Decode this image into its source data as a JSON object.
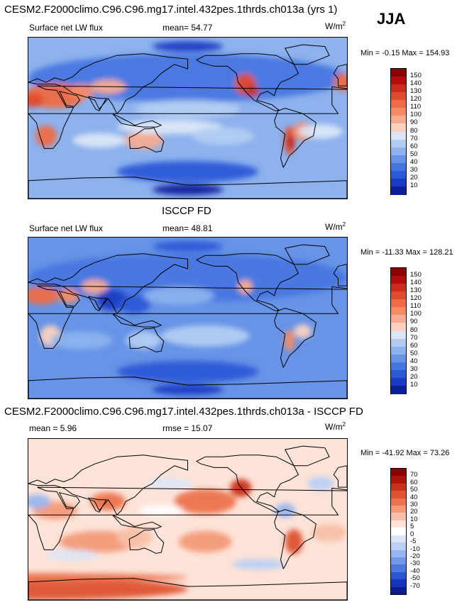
{
  "season": "JJA",
  "panels": [
    {
      "id": "model",
      "title": "CESM2.F2000climo.C96.C96.mg17.intel.432pes.1thrds.ch013a (yrs 1)",
      "variable": "Surface net LW flux",
      "stat": "mean=  54.77",
      "units_base": "W/m",
      "units_exp": "2",
      "minmax": "Min =  -0.15 Max = 154.93",
      "colorbar": {
        "levels": [
          "150",
          "140",
          "130",
          "120",
          "110",
          "100",
          "90",
          "80",
          "70",
          "60",
          "50",
          "40",
          "30",
          "20",
          "10"
        ],
        "colors": [
          "#8b0000",
          "#b30c0c",
          "#cc2a1c",
          "#e04a2e",
          "#ee6b45",
          "#f58c65",
          "#f7ac8f",
          "#fbd2c0",
          "#dbe7f7",
          "#b3cdf2",
          "#8db2ee",
          "#6794e6",
          "#4676df",
          "#2b5ad6",
          "#1a3cc4",
          "#0b1f9a"
        ]
      },
      "map_style": "model"
    },
    {
      "id": "obs",
      "title": "ISCCP FD",
      "variable": "Surface net LW flux",
      "stat": "mean=  48.81",
      "units_base": "W/m",
      "units_exp": "2",
      "minmax": "Min = -11.33 Max = 128.21",
      "colorbar": {
        "levels": [
          "150",
          "140",
          "130",
          "120",
          "110",
          "100",
          "90",
          "80",
          "70",
          "60",
          "50",
          "40",
          "30",
          "20",
          "10"
        ],
        "colors": [
          "#8b0000",
          "#b30c0c",
          "#cc2a1c",
          "#e04a2e",
          "#ee6b45",
          "#f58c65",
          "#f7ac8f",
          "#fbd2c0",
          "#dbe7f7",
          "#b3cdf2",
          "#8db2ee",
          "#6794e6",
          "#4676df",
          "#2b5ad6",
          "#1a3cc4",
          "#0b1f9a"
        ]
      },
      "map_style": "obs"
    },
    {
      "id": "diff",
      "title": "CESM2.F2000climo.C96.C96.mg17.intel.432pes.1thrds.ch013a - ISCCP FD",
      "stat_left": "mean =   5.96",
      "stat": "rmse =  15.07",
      "units_base": "W/m",
      "units_exp": "2",
      "minmax": "Min = -41.92 Max =  73.26",
      "colorbar": {
        "levels": [
          "70",
          "60",
          "50",
          "40",
          "30",
          "20",
          "10",
          "5",
          "0",
          "-5",
          "-10",
          "-20",
          "-30",
          "-40",
          "-50",
          "-70"
        ],
        "colors": [
          "#8b0000",
          "#b01408",
          "#c93218",
          "#dd5230",
          "#ec744e",
          "#f39a78",
          "#f8c0a8",
          "#fde3d8",
          "#ffffff",
          "#dce6f8",
          "#bcd0f3",
          "#98b6ee",
          "#7298e8",
          "#4f78df",
          "#2c55d2",
          "#1735b8",
          "#0b1d8f"
        ]
      },
      "map_style": "diff"
    }
  ],
  "chart_data": [
    {
      "type": "heatmap",
      "title": "CESM2.F2000climo.C96.C96.mg17.intel.432pes.1thrds.ch013a (yrs 1)",
      "subtitle": "Surface net LW flux",
      "mean": 54.77,
      "min": -0.15,
      "max": 154.93,
      "units": "W/m2",
      "season": "JJA",
      "colorbar_levels": [
        10,
        20,
        30,
        40,
        50,
        60,
        70,
        80,
        90,
        100,
        110,
        120,
        130,
        140,
        150
      ]
    },
    {
      "type": "heatmap",
      "title": "ISCCP FD",
      "subtitle": "Surface net LW flux",
      "mean": 48.81,
      "min": -11.33,
      "max": 128.21,
      "units": "W/m2",
      "season": "JJA",
      "colorbar_levels": [
        10,
        20,
        30,
        40,
        50,
        60,
        70,
        80,
        90,
        100,
        110,
        120,
        130,
        140,
        150
      ]
    },
    {
      "type": "heatmap",
      "title": "CESM2.F2000climo.C96.C96.mg17.intel.432pes.1thrds.ch013a - ISCCP FD",
      "mean": 5.96,
      "rmse": 15.07,
      "min": -41.92,
      "max": 73.26,
      "units": "W/m2",
      "season": "JJA",
      "colorbar_levels": [
        -70,
        -50,
        -40,
        -30,
        -20,
        -10,
        -5,
        0,
        5,
        10,
        20,
        30,
        40,
        50,
        60,
        70
      ]
    }
  ]
}
